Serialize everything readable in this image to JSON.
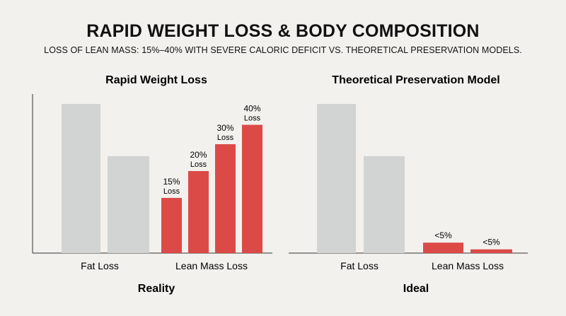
{
  "header": {
    "title": "RAPID WEIGHT LOSS & BODY COMPOSITION",
    "subtitle": "LOSS OF LEAN MASS: 15%–40% WITH SEVERE CALORIC DEFICIT VS. THEORETICAL PRESERVATION MODELS."
  },
  "colors": {
    "gray": "#d2d4d3",
    "red": "#dc4a48",
    "axis": "#333333"
  },
  "chart_data": [
    {
      "type": "bar",
      "title": "Rapid Weight Loss",
      "footer": "Reality",
      "categories": [
        "Fat Loss",
        "Lean Mass Loss"
      ],
      "ylim": [
        0,
        100
      ],
      "grid": false,
      "bars": [
        {
          "category": "Fat Loss",
          "value": 100,
          "color": "#d2d4d3",
          "label": "",
          "sublabel": ""
        },
        {
          "category": "Fat Loss",
          "value": 65,
          "color": "#d2d4d3",
          "label": "",
          "sublabel": ""
        },
        {
          "category": "Lean Mass Loss",
          "value": 37,
          "color": "#dc4a48",
          "label": "15%",
          "sublabel": "Loss"
        },
        {
          "category": "Lean Mass Loss",
          "value": 55,
          "color": "#dc4a48",
          "label": "20%",
          "sublabel": "Loss"
        },
        {
          "category": "Lean Mass Loss",
          "value": 73,
          "color": "#dc4a48",
          "label": "30%",
          "sublabel": "Loss"
        },
        {
          "category": "Lean Mass Loss",
          "value": 86,
          "color": "#dc4a48",
          "label": "40%",
          "sublabel": "Loss"
        }
      ]
    },
    {
      "type": "bar",
      "title": "Theoretical Preservation Model",
      "footer": "Ideal",
      "categories": [
        "Fat Loss",
        "Lean Mass Loss"
      ],
      "ylim": [
        0,
        100
      ],
      "grid": false,
      "bars": [
        {
          "category": "Fat Loss",
          "value": 100,
          "color": "#d2d4d3",
          "label": "",
          "sublabel": ""
        },
        {
          "category": "Fat Loss",
          "value": 65,
          "color": "#d2d4d3",
          "label": "",
          "sublabel": ""
        },
        {
          "category": "Lean Mass Loss",
          "value": 7,
          "color": "#dc4a48",
          "label": "<5%",
          "sublabel": ""
        },
        {
          "category": "Lean Mass Loss",
          "value": 2.5,
          "color": "#dc4a48",
          "label": "<5%",
          "sublabel": ""
        }
      ]
    }
  ]
}
